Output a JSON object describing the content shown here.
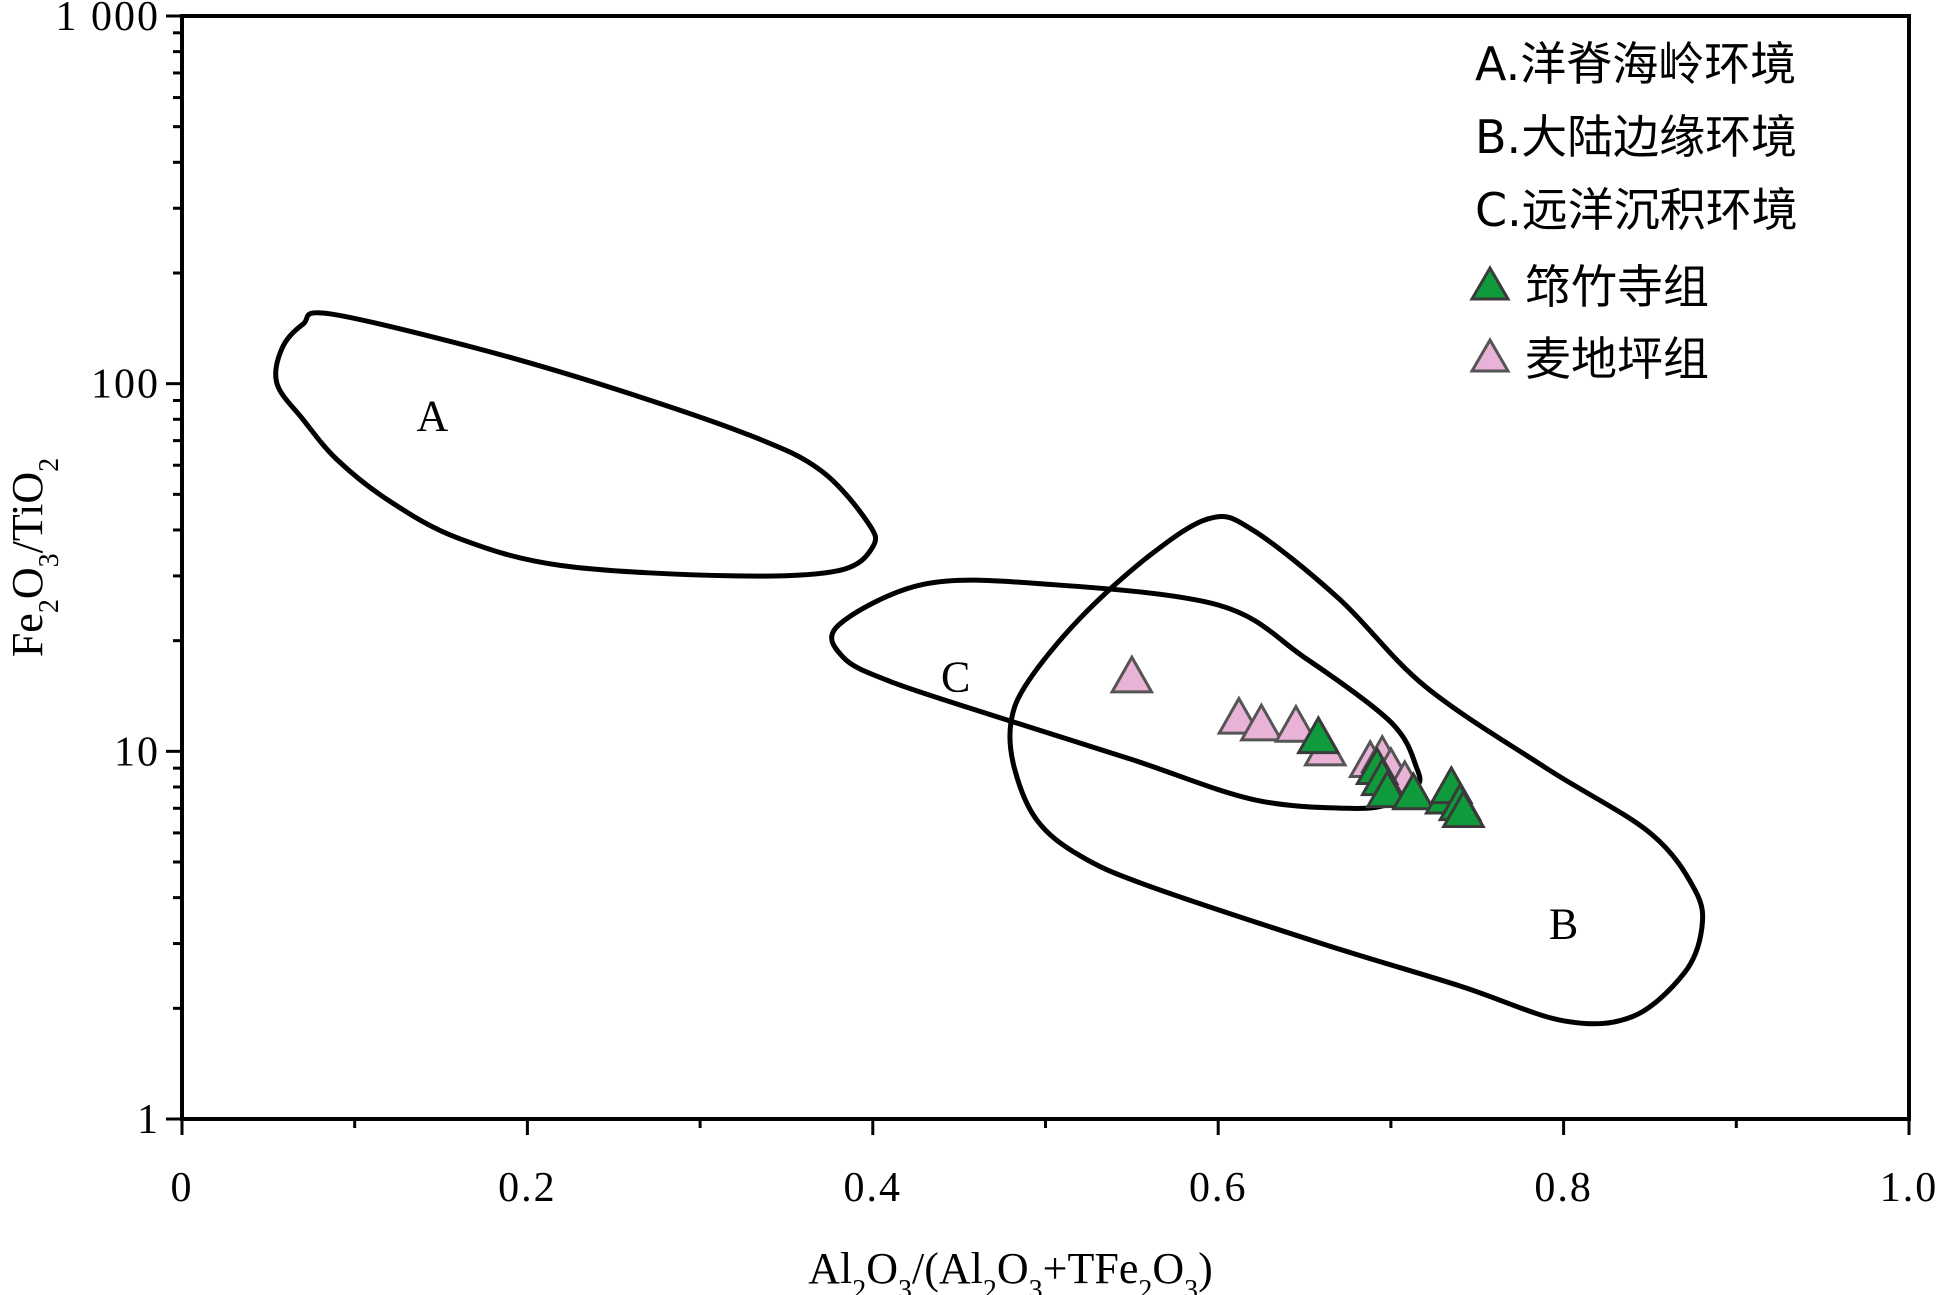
{
  "chart_data": {
    "type": "scatter",
    "x_axis": {
      "label_parts": [
        {
          "t": "Al",
          "sub": false
        },
        {
          "t": "2",
          "sub": true
        },
        {
          "t": "O",
          "sub": false
        },
        {
          "t": "3",
          "sub": true
        },
        {
          "t": "/(Al",
          "sub": false
        },
        {
          "t": "2",
          "sub": true
        },
        {
          "t": "O",
          "sub": false
        },
        {
          "t": "3",
          "sub": true
        },
        {
          "t": "+TFe",
          "sub": false
        },
        {
          "t": "2",
          "sub": true
        },
        {
          "t": "O",
          "sub": false
        },
        {
          "t": "3",
          "sub": true
        },
        {
          "t": ")",
          "sub": false
        }
      ],
      "range": [
        0,
        1.0
      ],
      "ticks": [
        0,
        0.2,
        0.4,
        0.6,
        0.8,
        1.0
      ],
      "tick_labels": [
        "0",
        "0.2",
        "0.4",
        "0.6",
        "0.8",
        "1.0"
      ]
    },
    "y_axis": {
      "label_parts": [
        {
          "t": "Fe",
          "sub": false
        },
        {
          "t": "2",
          "sub": true
        },
        {
          "t": "O",
          "sub": false
        },
        {
          "t": "3",
          "sub": true
        },
        {
          "t": "/TiO",
          "sub": false
        },
        {
          "t": "2",
          "sub": true
        }
      ],
      "scale": "log",
      "range": [
        1,
        1000
      ],
      "ticks": [
        1,
        10,
        100,
        1000
      ],
      "tick_labels": [
        "1",
        "10",
        "100",
        "1 000"
      ]
    },
    "regions": [
      {
        "id": "A",
        "label": "A",
        "label_at": [
          0.145,
          82
        ],
        "outline": [
          [
            0.085,
            155
          ],
          [
            0.17,
            125
          ],
          [
            0.25,
            97
          ],
          [
            0.33,
            72
          ],
          [
            0.37,
            58
          ],
          [
            0.397,
            42
          ],
          [
            0.4,
            36
          ],
          [
            0.38,
            31
          ],
          [
            0.32,
            30
          ],
          [
            0.22,
            32
          ],
          [
            0.16,
            38
          ],
          [
            0.12,
            48
          ],
          [
            0.09,
            62
          ],
          [
            0.07,
            80
          ],
          [
            0.055,
            100
          ],
          [
            0.058,
            125
          ],
          [
            0.07,
            145
          ],
          [
            0.085,
            155
          ]
        ]
      },
      {
        "id": "B",
        "label": "B",
        "label_at": [
          0.8,
          3.4
        ],
        "outline": [
          [
            0.595,
            43
          ],
          [
            0.62,
            40
          ],
          [
            0.67,
            26
          ],
          [
            0.72,
            15
          ],
          [
            0.79,
            9
          ],
          [
            0.85,
            6
          ],
          [
            0.876,
            4.2
          ],
          [
            0.88,
            3.3
          ],
          [
            0.87,
            2.5
          ],
          [
            0.84,
            1.9
          ],
          [
            0.8,
            1.85
          ],
          [
            0.74,
            2.3
          ],
          [
            0.66,
            3.0
          ],
          [
            0.56,
            4.3
          ],
          [
            0.52,
            5.2
          ],
          [
            0.495,
            6.5
          ],
          [
            0.482,
            9
          ],
          [
            0.48,
            12
          ],
          [
            0.49,
            15.5
          ],
          [
            0.52,
            23
          ],
          [
            0.56,
            34
          ],
          [
            0.595,
            43
          ]
        ]
      },
      {
        "id": "C",
        "label": "C",
        "label_at": [
          0.448,
          16
        ],
        "outline": [
          [
            0.38,
            22
          ],
          [
            0.43,
            28.5
          ],
          [
            0.5,
            28.5
          ],
          [
            0.6,
            25
          ],
          [
            0.65,
            18
          ],
          [
            0.7,
            12
          ],
          [
            0.715,
            9
          ],
          [
            0.715,
            8
          ],
          [
            0.7,
            7.2
          ],
          [
            0.675,
            7.0
          ],
          [
            0.62,
            7.4
          ],
          [
            0.55,
            9.5
          ],
          [
            0.47,
            12.5
          ],
          [
            0.41,
            15.5
          ],
          [
            0.383,
            18
          ],
          [
            0.38,
            22
          ]
        ]
      }
    ],
    "series": [
      {
        "name": "筇竹寺组",
        "marker": "triangle",
        "fill": "#0f9a3c",
        "stroke": "#3a3a3a",
        "points": [
          [
            0.658,
            10.8
          ],
          [
            0.692,
            8.9
          ],
          [
            0.695,
            8.3
          ],
          [
            0.698,
            7.7
          ],
          [
            0.713,
            7.6
          ],
          [
            0.732,
            7.4
          ],
          [
            0.735,
            7.9
          ],
          [
            0.74,
            7.1
          ],
          [
            0.742,
            6.8
          ]
        ]
      },
      {
        "name": "麦地坪组",
        "marker": "triangle",
        "fill": "#e8b3d6",
        "stroke": "#555555",
        "points": [
          [
            0.55,
            15.8
          ],
          [
            0.612,
            12.2
          ],
          [
            0.625,
            11.7
          ],
          [
            0.645,
            11.6
          ],
          [
            0.662,
            10.0
          ],
          [
            0.688,
            9.3
          ],
          [
            0.695,
            9.6
          ],
          [
            0.7,
            8.9
          ],
          [
            0.708,
            8.2
          ]
        ]
      }
    ],
    "legend": {
      "placement": "top-right",
      "region_entries": [
        "A.洋脊海岭环境",
        "B.大陆边缘环境",
        "C.远洋沉积环境"
      ],
      "series_entries": [
        "筇竹寺组",
        "麦地坪组"
      ]
    }
  }
}
